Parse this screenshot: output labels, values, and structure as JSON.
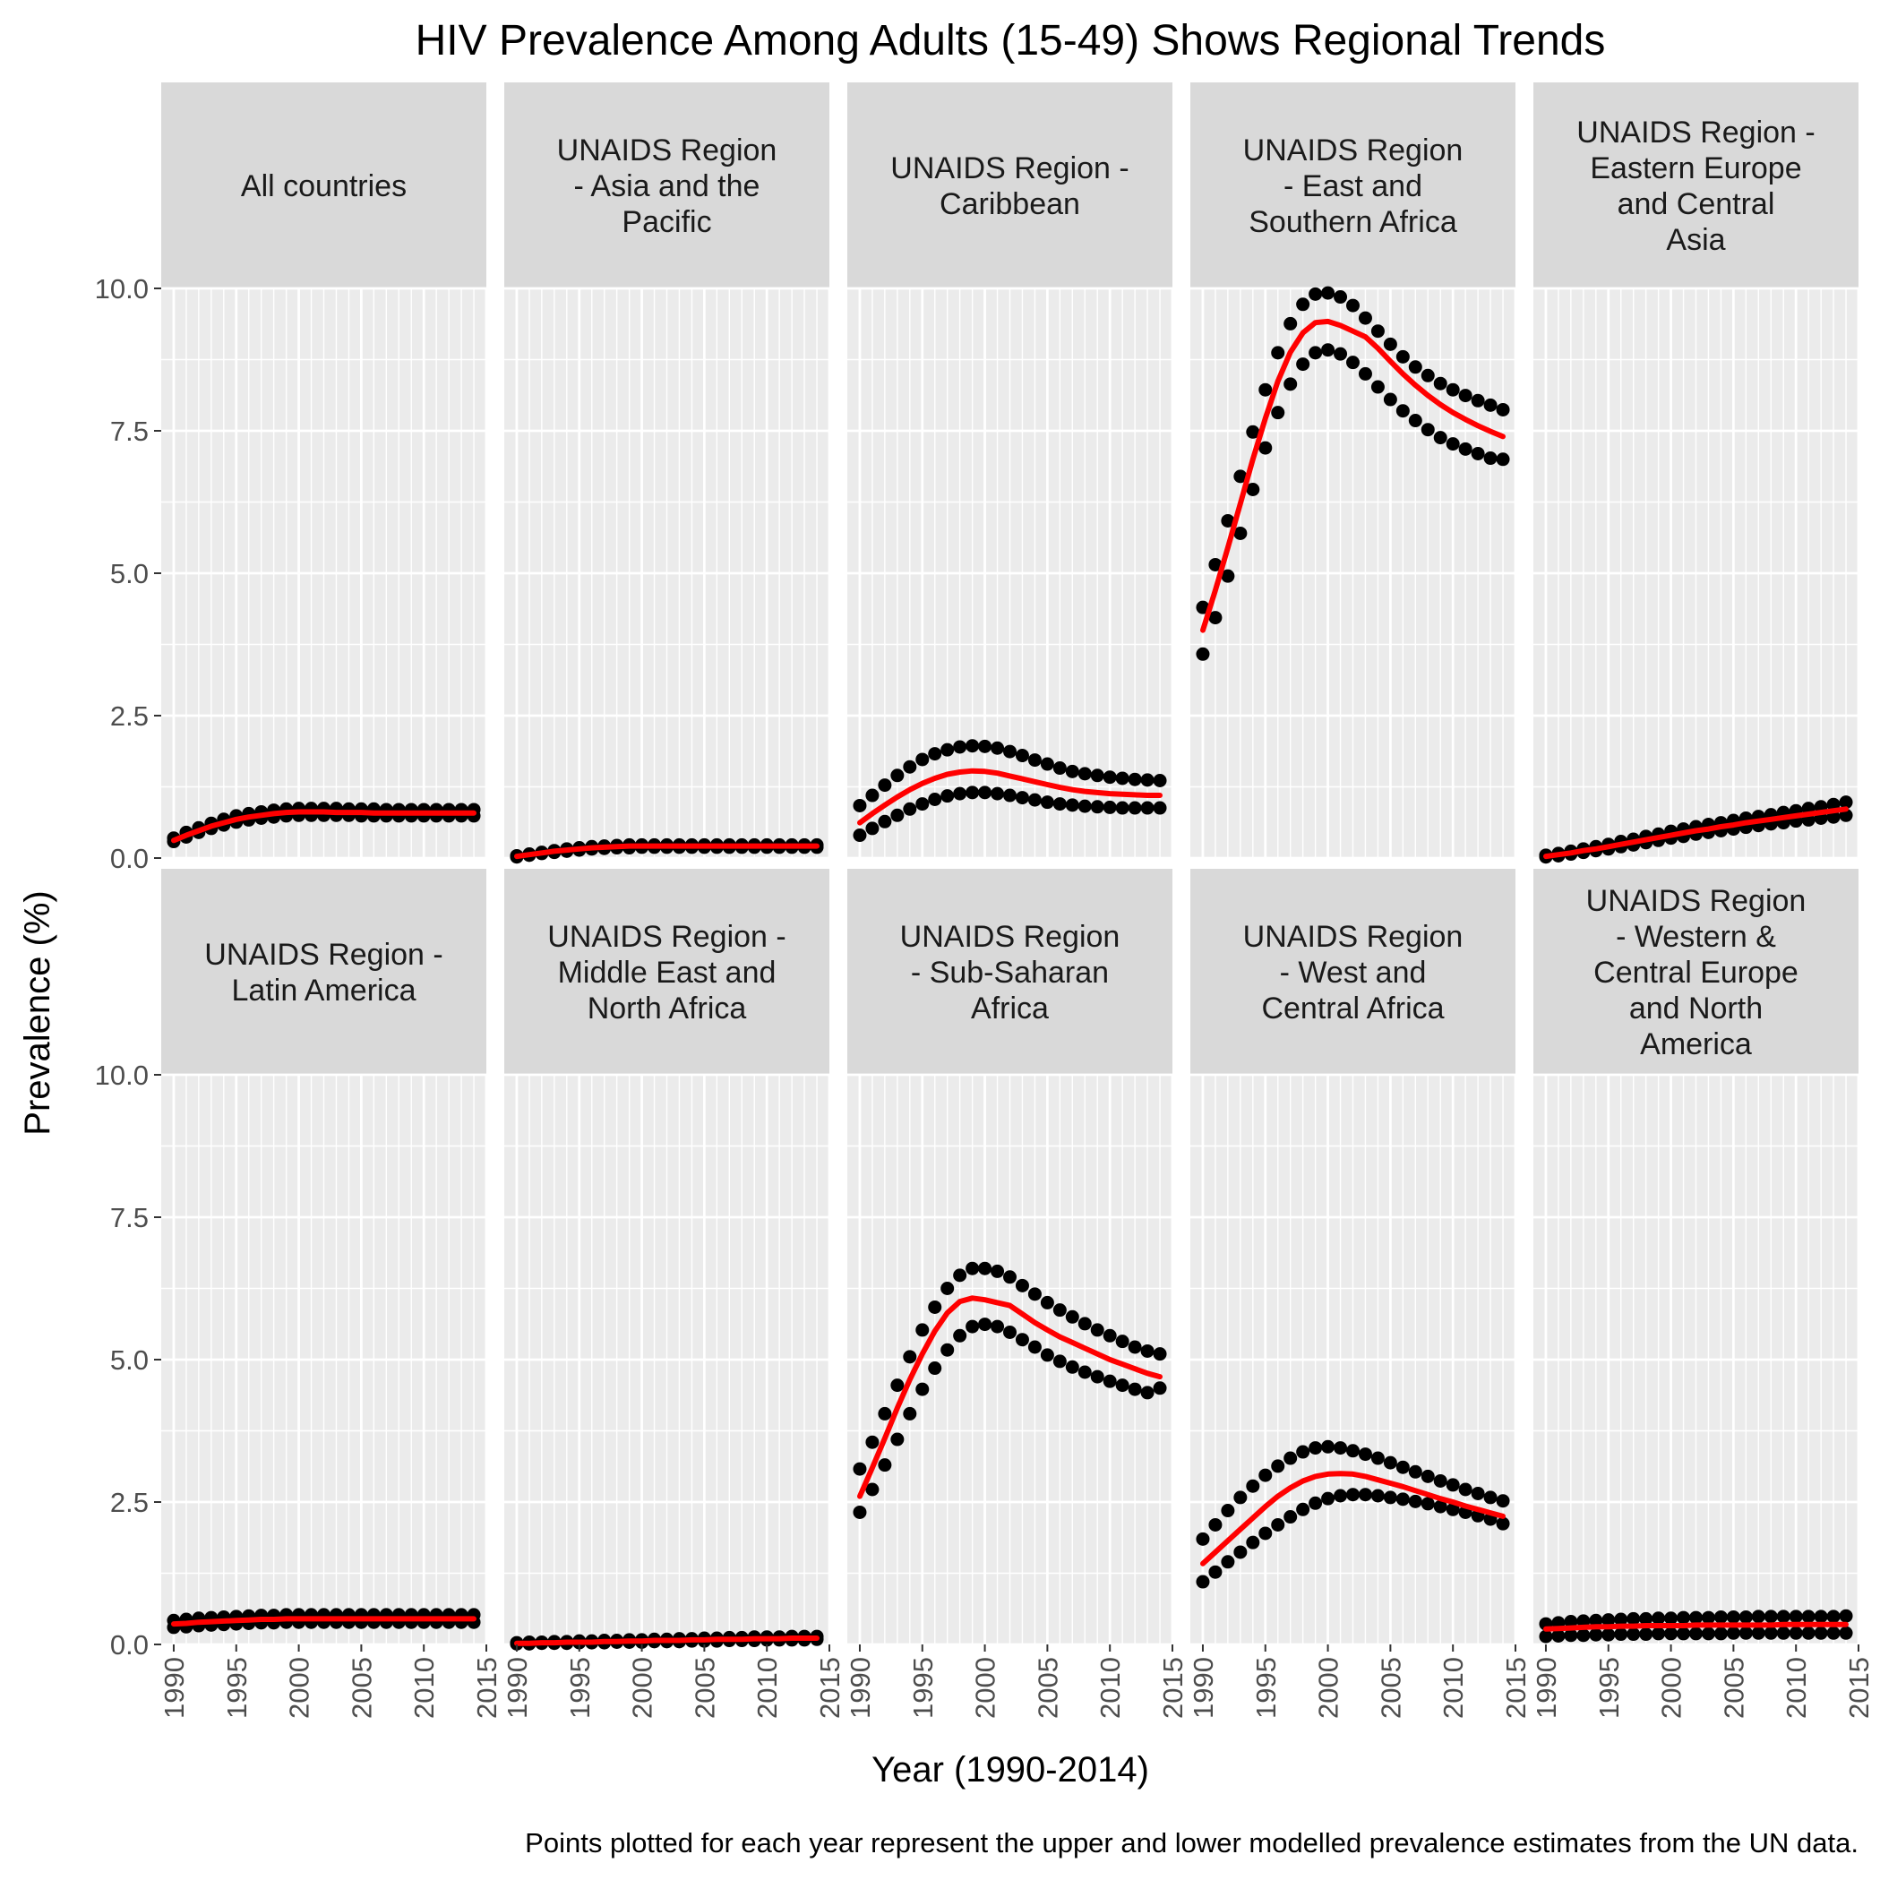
{
  "chart_data": {
    "type": "scatter",
    "title": "HIV Prevalence Among Adults (15-49) Shows Regional Trends",
    "xlabel": "Year (1990-2014)",
    "ylabel": "Prevalence (%)",
    "caption": "Points plotted for each year represent the upper and lower modelled prevalence estimates from the UN data.",
    "xlim": [
      1989,
      2015
    ],
    "ylim": [
      0,
      10
    ],
    "x_ticks": [
      "1990",
      "1995",
      "2000",
      "2005",
      "2010",
      "2015"
    ],
    "y_ticks": [
      "0.0",
      "2.5",
      "5.0",
      "7.5",
      "10.0"
    ],
    "grid": true,
    "layout": "2 rows x 5 facets",
    "years": [
      1990,
      1991,
      1992,
      1993,
      1994,
      1995,
      1996,
      1997,
      1998,
      1999,
      2000,
      2001,
      2002,
      2003,
      2004,
      2005,
      2006,
      2007,
      2008,
      2009,
      2010,
      2011,
      2012,
      2013,
      2014
    ],
    "colors": {
      "points": "#000000",
      "line": "#ff0000",
      "panel": "#ebebeb",
      "strip": "#d9d9d9",
      "grid": "#ffffff"
    },
    "facets": [
      {
        "label": [
          "All countries"
        ],
        "upper": [
          0.35,
          0.45,
          0.53,
          0.61,
          0.68,
          0.74,
          0.78,
          0.81,
          0.84,
          0.86,
          0.87,
          0.87,
          0.87,
          0.87,
          0.86,
          0.86,
          0.86,
          0.85,
          0.85,
          0.85,
          0.85,
          0.85,
          0.85,
          0.85,
          0.85
        ],
        "lower": [
          0.29,
          0.37,
          0.45,
          0.52,
          0.58,
          0.63,
          0.67,
          0.7,
          0.72,
          0.74,
          0.75,
          0.75,
          0.75,
          0.75,
          0.75,
          0.74,
          0.74,
          0.74,
          0.74,
          0.74,
          0.74,
          0.74,
          0.74,
          0.74,
          0.74
        ],
        "estimate": [
          0.31,
          0.4,
          0.48,
          0.56,
          0.62,
          0.68,
          0.72,
          0.75,
          0.78,
          0.8,
          0.81,
          0.81,
          0.81,
          0.8,
          0.8,
          0.8,
          0.79,
          0.79,
          0.79,
          0.79,
          0.79,
          0.79,
          0.79,
          0.79,
          0.79
        ]
      },
      {
        "label": [
          "UNAIDS Region",
          "- Asia and the",
          "Pacific"
        ],
        "upper": [
          0.04,
          0.07,
          0.1,
          0.13,
          0.16,
          0.18,
          0.2,
          0.21,
          0.22,
          0.23,
          0.23,
          0.23,
          0.23,
          0.23,
          0.23,
          0.23,
          0.23,
          0.23,
          0.23,
          0.23,
          0.23,
          0.23,
          0.23,
          0.23,
          0.23
        ],
        "lower": [
          0.02,
          0.05,
          0.08,
          0.1,
          0.12,
          0.14,
          0.16,
          0.17,
          0.18,
          0.18,
          0.19,
          0.19,
          0.19,
          0.19,
          0.19,
          0.19,
          0.19,
          0.19,
          0.19,
          0.19,
          0.19,
          0.19,
          0.19,
          0.19,
          0.19
        ],
        "estimate": [
          0.03,
          0.06,
          0.09,
          0.12,
          0.14,
          0.16,
          0.18,
          0.19,
          0.2,
          0.21,
          0.21,
          0.21,
          0.21,
          0.21,
          0.21,
          0.21,
          0.21,
          0.21,
          0.21,
          0.21,
          0.21,
          0.21,
          0.21,
          0.21,
          0.21
        ]
      },
      {
        "label": [
          "UNAIDS Region -",
          "Caribbean"
        ],
        "upper": [
          0.92,
          1.1,
          1.28,
          1.45,
          1.6,
          1.73,
          1.83,
          1.9,
          1.95,
          1.97,
          1.96,
          1.93,
          1.87,
          1.8,
          1.72,
          1.65,
          1.58,
          1.52,
          1.48,
          1.45,
          1.42,
          1.4,
          1.38,
          1.37,
          1.36
        ],
        "lower": [
          0.4,
          0.52,
          0.64,
          0.75,
          0.86,
          0.95,
          1.03,
          1.09,
          1.13,
          1.15,
          1.15,
          1.13,
          1.1,
          1.06,
          1.02,
          0.98,
          0.95,
          0.93,
          0.91,
          0.9,
          0.89,
          0.88,
          0.88,
          0.88,
          0.88
        ],
        "estimate": [
          0.62,
          0.78,
          0.93,
          1.07,
          1.2,
          1.31,
          1.4,
          1.47,
          1.51,
          1.53,
          1.52,
          1.49,
          1.44,
          1.39,
          1.34,
          1.29,
          1.24,
          1.2,
          1.17,
          1.15,
          1.13,
          1.12,
          1.11,
          1.1,
          1.1
        ]
      },
      {
        "label": [
          "UNAIDS Region",
          "- East and",
          "Southern Africa"
        ],
        "upper": [
          4.4,
          5.15,
          5.92,
          6.7,
          7.48,
          8.22,
          8.87,
          9.38,
          9.72,
          9.9,
          9.92,
          9.85,
          9.7,
          9.48,
          9.25,
          9.02,
          8.8,
          8.62,
          8.47,
          8.33,
          8.22,
          8.12,
          8.03,
          7.95,
          7.87
        ],
        "lower": [
          3.58,
          4.22,
          4.95,
          5.7,
          6.47,
          7.2,
          7.82,
          8.32,
          8.67,
          8.87,
          8.92,
          8.85,
          8.7,
          8.5,
          8.27,
          8.05,
          7.85,
          7.68,
          7.52,
          7.38,
          7.27,
          7.18,
          7.1,
          7.02,
          7.0
        ],
        "estimate": [
          4.0,
          4.7,
          5.45,
          6.22,
          7.0,
          7.72,
          8.37,
          8.88,
          9.22,
          9.4,
          9.42,
          9.35,
          9.25,
          9.15,
          8.95,
          8.72,
          8.5,
          8.3,
          8.12,
          7.96,
          7.82,
          7.7,
          7.59,
          7.49,
          7.4
        ]
      },
      {
        "label": [
          "UNAIDS Region -",
          "Eastern Europe",
          "and Central",
          "Asia"
        ],
        "upper": [
          0.05,
          0.08,
          0.12,
          0.16,
          0.2,
          0.24,
          0.29,
          0.33,
          0.38,
          0.42,
          0.47,
          0.51,
          0.55,
          0.59,
          0.62,
          0.66,
          0.7,
          0.73,
          0.76,
          0.8,
          0.83,
          0.87,
          0.9,
          0.94,
          0.98
        ],
        "lower": [
          0.02,
          0.04,
          0.07,
          0.1,
          0.13,
          0.16,
          0.2,
          0.23,
          0.27,
          0.31,
          0.35,
          0.38,
          0.42,
          0.45,
          0.48,
          0.51,
          0.54,
          0.57,
          0.6,
          0.62,
          0.65,
          0.67,
          0.7,
          0.72,
          0.75
        ],
        "estimate": [
          0.03,
          0.06,
          0.09,
          0.13,
          0.16,
          0.2,
          0.24,
          0.28,
          0.32,
          0.36,
          0.4,
          0.44,
          0.48,
          0.51,
          0.55,
          0.58,
          0.62,
          0.65,
          0.68,
          0.71,
          0.74,
          0.77,
          0.8,
          0.83,
          0.86
        ]
      },
      {
        "label": [
          "UNAIDS Region -",
          "Latin America"
        ],
        "upper": [
          0.42,
          0.44,
          0.46,
          0.47,
          0.48,
          0.49,
          0.5,
          0.51,
          0.51,
          0.52,
          0.52,
          0.52,
          0.52,
          0.52,
          0.52,
          0.52,
          0.52,
          0.52,
          0.52,
          0.52,
          0.52,
          0.52,
          0.52,
          0.52,
          0.52
        ],
        "lower": [
          0.3,
          0.31,
          0.33,
          0.34,
          0.35,
          0.36,
          0.37,
          0.38,
          0.38,
          0.39,
          0.39,
          0.39,
          0.39,
          0.39,
          0.39,
          0.39,
          0.39,
          0.39,
          0.39,
          0.39,
          0.39,
          0.39,
          0.39,
          0.39,
          0.39
        ],
        "estimate": [
          0.36,
          0.37,
          0.39,
          0.4,
          0.41,
          0.42,
          0.43,
          0.44,
          0.44,
          0.45,
          0.45,
          0.45,
          0.45,
          0.45,
          0.45,
          0.45,
          0.45,
          0.45,
          0.45,
          0.45,
          0.45,
          0.45,
          0.45,
          0.45,
          0.45
        ]
      },
      {
        "label": [
          "UNAIDS Region -",
          "Middle East and",
          "North Africa"
        ],
        "upper": [
          0.03,
          0.04,
          0.04,
          0.05,
          0.05,
          0.06,
          0.06,
          0.07,
          0.07,
          0.08,
          0.08,
          0.09,
          0.09,
          0.1,
          0.1,
          0.11,
          0.11,
          0.12,
          0.12,
          0.13,
          0.13,
          0.13,
          0.14,
          0.14,
          0.14
        ],
        "lower": [
          0.01,
          0.01,
          0.02,
          0.02,
          0.02,
          0.03,
          0.03,
          0.03,
          0.04,
          0.04,
          0.04,
          0.05,
          0.05,
          0.05,
          0.06,
          0.06,
          0.06,
          0.07,
          0.07,
          0.07,
          0.08,
          0.08,
          0.08,
          0.08,
          0.09
        ],
        "estimate": [
          0.02,
          0.02,
          0.03,
          0.03,
          0.04,
          0.04,
          0.04,
          0.05,
          0.05,
          0.06,
          0.06,
          0.07,
          0.07,
          0.07,
          0.08,
          0.08,
          0.09,
          0.09,
          0.09,
          0.1,
          0.1,
          0.1,
          0.11,
          0.11,
          0.11
        ]
      },
      {
        "label": [
          "UNAIDS Region",
          "- Sub-Saharan",
          "Africa"
        ],
        "upper": [
          3.08,
          3.55,
          4.05,
          4.55,
          5.05,
          5.52,
          5.92,
          6.25,
          6.48,
          6.6,
          6.6,
          6.55,
          6.45,
          6.3,
          6.15,
          6.0,
          5.87,
          5.75,
          5.63,
          5.52,
          5.42,
          5.32,
          5.22,
          5.15,
          5.1
        ],
        "lower": [
          2.32,
          2.72,
          3.15,
          3.6,
          4.05,
          4.48,
          4.85,
          5.17,
          5.42,
          5.58,
          5.62,
          5.58,
          5.48,
          5.35,
          5.22,
          5.08,
          4.97,
          4.87,
          4.78,
          4.7,
          4.62,
          4.55,
          4.48,
          4.42,
          4.5
        ],
        "estimate": [
          2.6,
          3.1,
          3.62,
          4.15,
          4.65,
          5.1,
          5.5,
          5.82,
          6.02,
          6.08,
          6.05,
          6.0,
          5.95,
          5.8,
          5.65,
          5.52,
          5.4,
          5.3,
          5.2,
          5.1,
          5.0,
          4.92,
          4.84,
          4.76,
          4.7
        ]
      },
      {
        "label": [
          "UNAIDS Region",
          "- West and",
          "Central Africa"
        ],
        "upper": [
          1.85,
          2.1,
          2.35,
          2.58,
          2.78,
          2.97,
          3.13,
          3.27,
          3.38,
          3.45,
          3.47,
          3.45,
          3.4,
          3.34,
          3.27,
          3.19,
          3.11,
          3.03,
          2.95,
          2.87,
          2.8,
          2.72,
          2.65,
          2.58,
          2.52
        ],
        "lower": [
          1.1,
          1.27,
          1.45,
          1.62,
          1.79,
          1.95,
          2.1,
          2.24,
          2.37,
          2.48,
          2.56,
          2.61,
          2.63,
          2.63,
          2.61,
          2.58,
          2.55,
          2.51,
          2.47,
          2.42,
          2.37,
          2.32,
          2.26,
          2.2,
          2.12
        ],
        "estimate": [
          1.42,
          1.62,
          1.82,
          2.02,
          2.22,
          2.42,
          2.6,
          2.75,
          2.87,
          2.95,
          2.99,
          3.0,
          2.99,
          2.95,
          2.89,
          2.83,
          2.77,
          2.7,
          2.63,
          2.56,
          2.5,
          2.43,
          2.37,
          2.31,
          2.25
        ]
      },
      {
        "label": [
          "UNAIDS Region",
          "- Western &",
          "Central Europe",
          "and North",
          "America"
        ],
        "upper": [
          0.36,
          0.38,
          0.4,
          0.41,
          0.42,
          0.43,
          0.44,
          0.45,
          0.45,
          0.46,
          0.46,
          0.47,
          0.47,
          0.47,
          0.48,
          0.48,
          0.48,
          0.49,
          0.49,
          0.49,
          0.49,
          0.49,
          0.49,
          0.49,
          0.5
        ],
        "lower": [
          0.14,
          0.15,
          0.16,
          0.16,
          0.17,
          0.17,
          0.18,
          0.18,
          0.18,
          0.19,
          0.19,
          0.19,
          0.19,
          0.19,
          0.19,
          0.2,
          0.2,
          0.2,
          0.2,
          0.2,
          0.2,
          0.2,
          0.2,
          0.2,
          0.2
        ],
        "estimate": [
          0.27,
          0.28,
          0.29,
          0.3,
          0.31,
          0.31,
          0.32,
          0.32,
          0.33,
          0.33,
          0.33,
          0.33,
          0.34,
          0.34,
          0.34,
          0.34,
          0.34,
          0.34,
          0.34,
          0.35,
          0.35,
          0.35,
          0.35,
          0.35,
          0.35
        ]
      }
    ]
  }
}
